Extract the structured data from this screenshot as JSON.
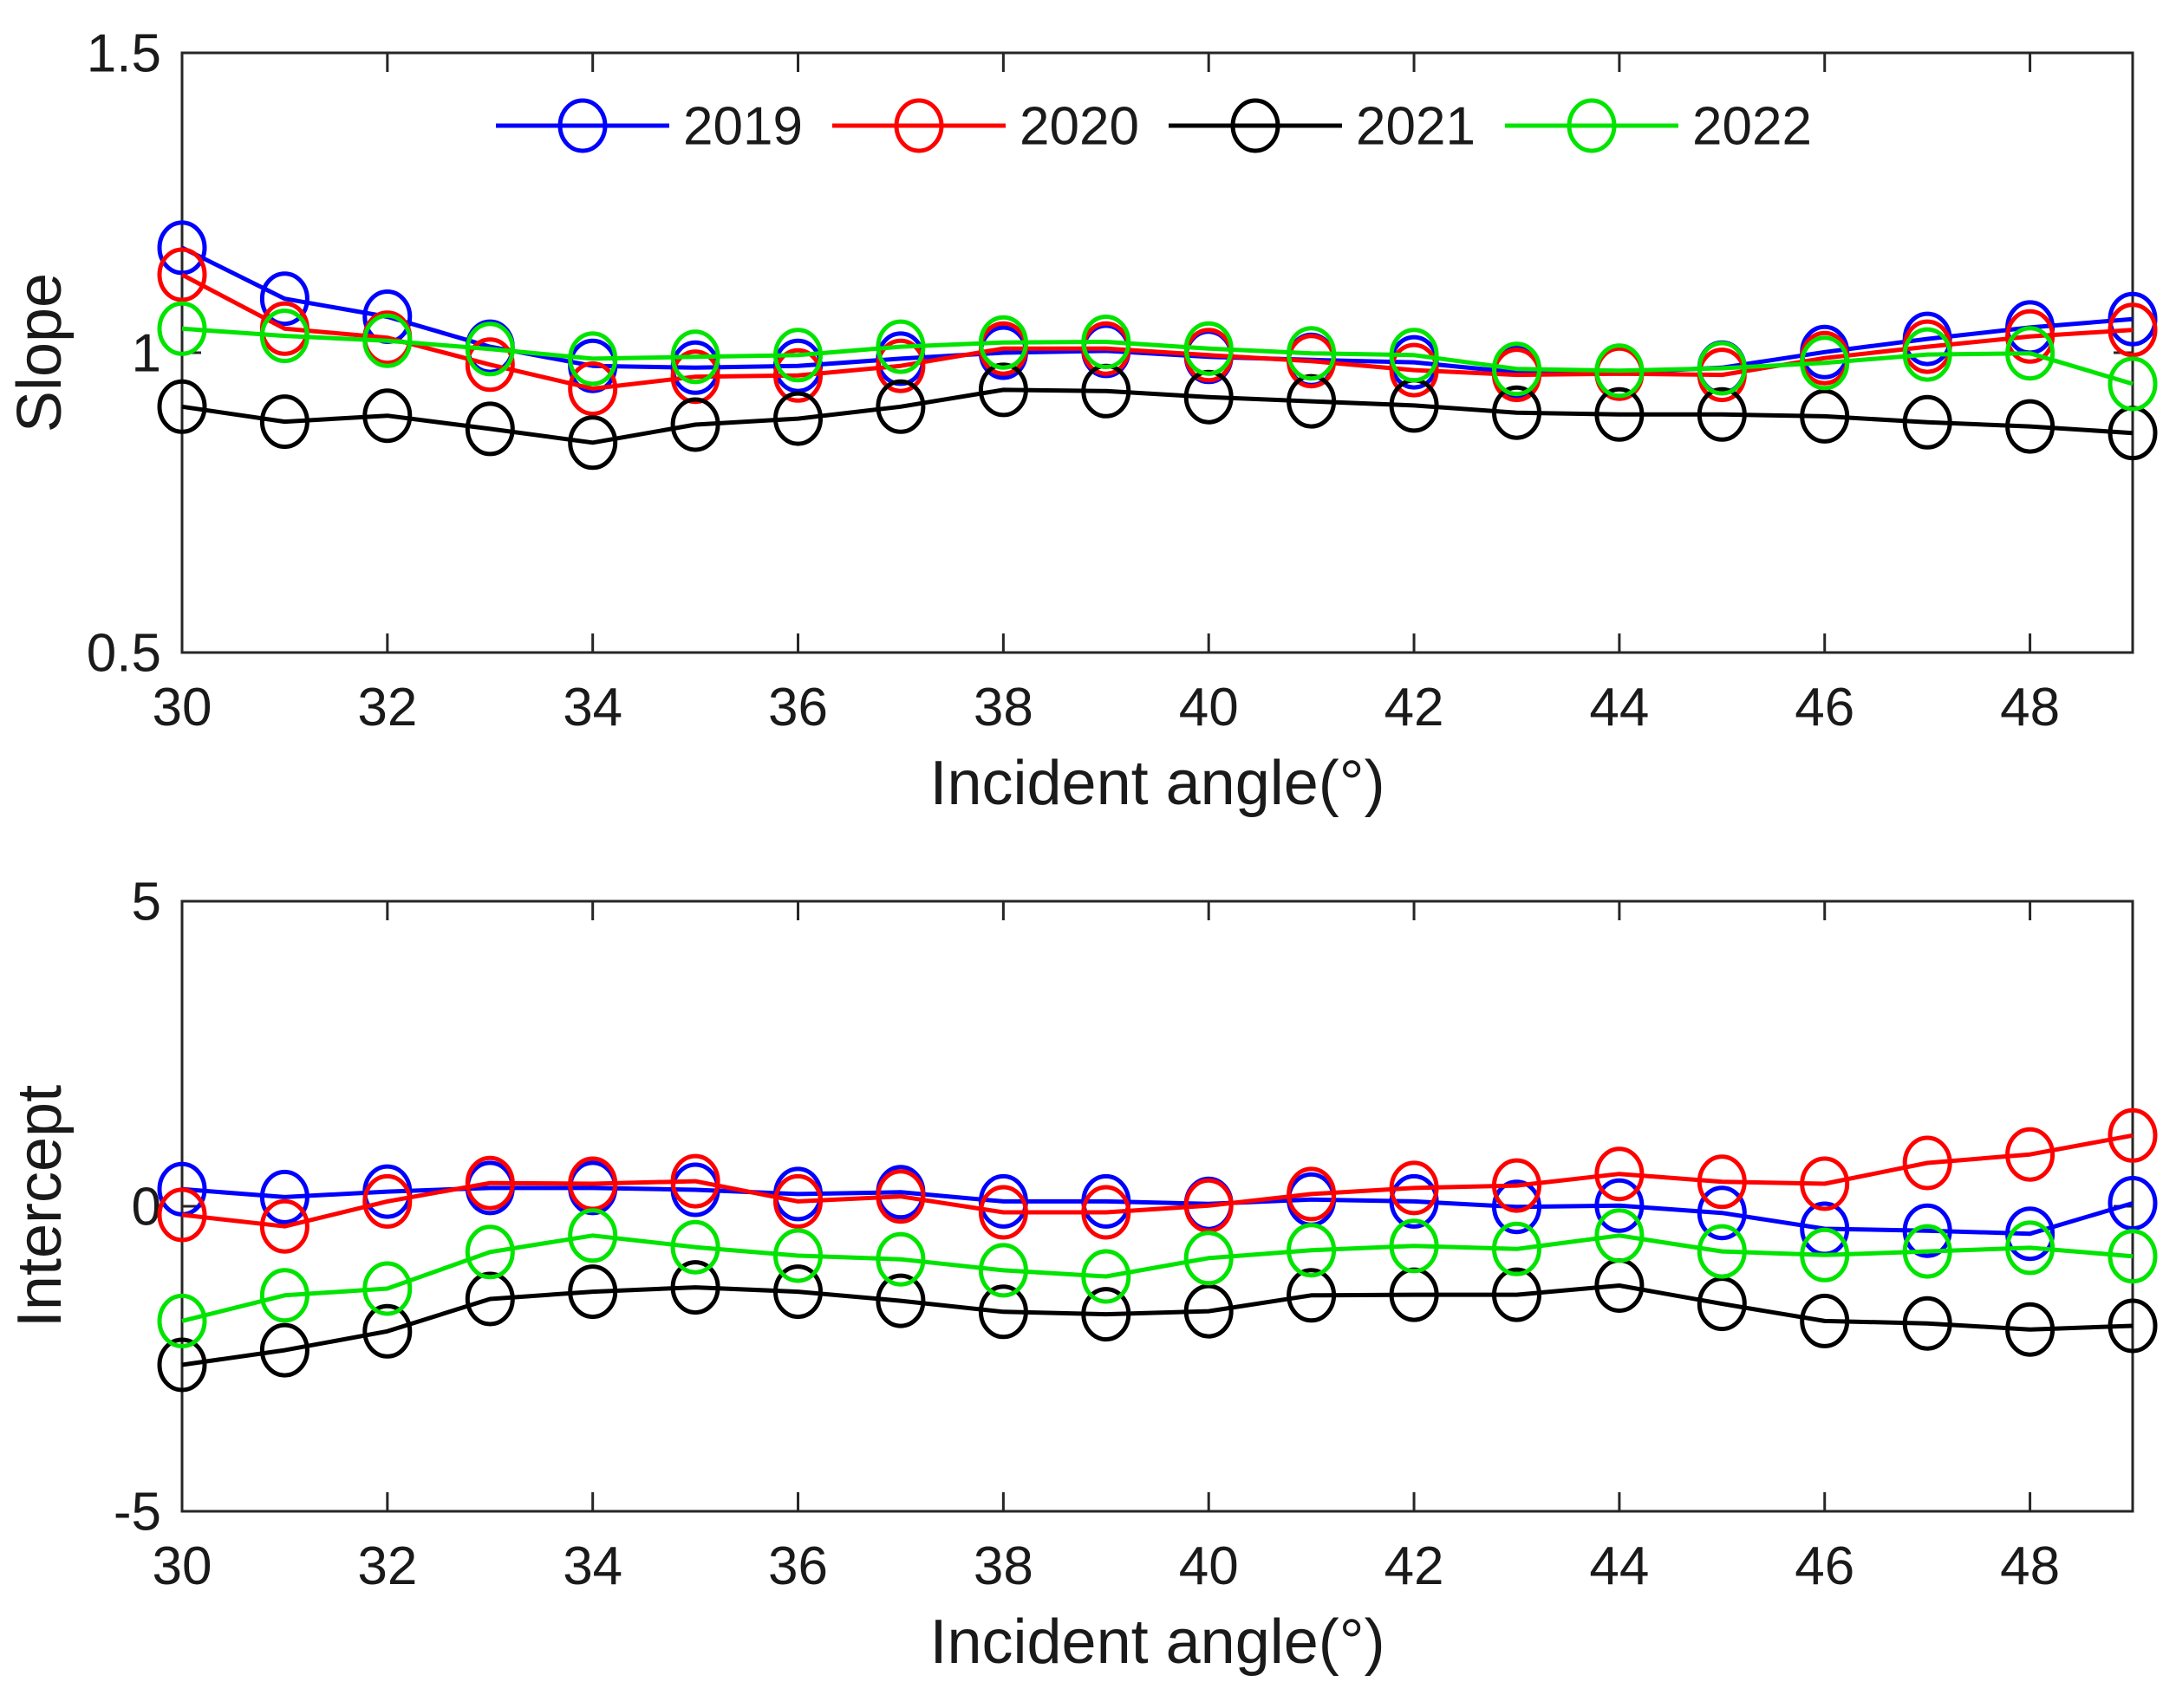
{
  "figure": {
    "background": "#ffffff",
    "axis_color": "#262626",
    "text_color": "#1a1a1a"
  },
  "legend": {
    "position": "top-inside",
    "entries": [
      {
        "label": "2019",
        "color": "#0000ff",
        "marker": "circle-icon"
      },
      {
        "label": "2020",
        "color": "#ff0000",
        "marker": "circle-icon"
      },
      {
        "label": "2021",
        "color": "#000000",
        "marker": "circle-icon"
      },
      {
        "label": "2022",
        "color": "#00e400",
        "marker": "circle-icon"
      }
    ]
  },
  "chart_data": [
    {
      "type": "line",
      "title": "",
      "xlabel": "Incident angle(°)",
      "ylabel": "Slope",
      "xlim": [
        30,
        49
      ],
      "ylim": [
        0.5,
        1.5
      ],
      "xticks": [
        30,
        32,
        34,
        36,
        38,
        40,
        42,
        44,
        46,
        48
      ],
      "xtick_labels": [
        "30",
        "32",
        "34",
        "36",
        "38",
        "40",
        "42",
        "44",
        "46",
        "48"
      ],
      "yticks": [
        0.5,
        1,
        1.5
      ],
      "ytick_labels": [
        "0.5",
        "1",
        "1.5"
      ],
      "grid": false,
      "legend": true,
      "x": [
        30,
        31,
        32,
        33,
        34,
        35,
        36,
        37,
        38,
        39,
        40,
        41,
        42,
        43,
        44,
        45,
        46,
        47,
        48,
        49
      ],
      "series": [
        {
          "name": "2019",
          "color": "#0000ff",
          "marker": "o",
          "values": [
            1.175,
            1.09,
            1.06,
            1.01,
            0.978,
            0.975,
            0.978,
            0.99,
            1.0,
            1.003,
            0.993,
            0.988,
            0.984,
            0.967,
            0.967,
            0.975,
            1.001,
            1.023,
            1.042,
            1.056
          ]
        },
        {
          "name": "2020",
          "color": "#ff0000",
          "marker": "o",
          "values": [
            1.13,
            1.04,
            1.025,
            0.98,
            0.94,
            0.96,
            0.962,
            0.978,
            1.007,
            1.007,
            0.996,
            0.986,
            0.971,
            0.963,
            0.965,
            0.963,
            0.991,
            1.01,
            1.027,
            1.038
          ]
        },
        {
          "name": "2021",
          "color": "#000000",
          "marker": "o",
          "values": [
            0.91,
            0.885,
            0.895,
            0.873,
            0.85,
            0.88,
            0.89,
            0.91,
            0.938,
            0.936,
            0.926,
            0.919,
            0.912,
            0.9,
            0.897,
            0.897,
            0.894,
            0.884,
            0.877,
            0.866
          ]
        },
        {
          "name": "2022",
          "color": "#00e400",
          "marker": "o",
          "values": [
            1.04,
            1.028,
            1.02,
            1.006,
            0.99,
            0.993,
            0.996,
            1.01,
            1.017,
            1.018,
            1.007,
            0.999,
            0.996,
            0.973,
            0.97,
            0.974,
            0.983,
            0.997,
            0.999,
            0.948
          ]
        }
      ]
    },
    {
      "type": "line",
      "title": "",
      "xlabel": "Incident angle(°)",
      "ylabel": "Intercept",
      "xlim": [
        30,
        49
      ],
      "ylim": [
        -5,
        5
      ],
      "xticks": [
        30,
        32,
        34,
        36,
        38,
        40,
        42,
        44,
        46,
        48
      ],
      "xtick_labels": [
        "30",
        "32",
        "34",
        "36",
        "38",
        "40",
        "42",
        "44",
        "46",
        "48"
      ],
      "yticks": [
        -5,
        0,
        5
      ],
      "ytick_labels": [
        "-5",
        "0",
        "5"
      ],
      "grid": false,
      "legend": false,
      "x": [
        30,
        31,
        32,
        33,
        34,
        35,
        36,
        37,
        38,
        39,
        40,
        41,
        42,
        43,
        44,
        45,
        46,
        47,
        48,
        49
      ],
      "series": [
        {
          "name": "2019",
          "color": "#0000ff",
          "marker": "o",
          "values": [
            0.28,
            0.15,
            0.24,
            0.3,
            0.3,
            0.27,
            0.2,
            0.23,
            0.08,
            0.08,
            0.04,
            0.11,
            0.08,
            -0.01,
            0.01,
            -0.11,
            -0.37,
            -0.4,
            -0.45,
            0.05
          ]
        },
        {
          "name": "2020",
          "color": "#ff0000",
          "marker": "o",
          "values": [
            -0.14,
            -0.33,
            0.08,
            0.38,
            0.37,
            0.41,
            0.08,
            0.16,
            -0.1,
            -0.1,
            0.01,
            0.2,
            0.3,
            0.34,
            0.53,
            0.4,
            0.37,
            0.71,
            0.85,
            1.16
          ]
        },
        {
          "name": "2021",
          "color": "#000000",
          "marker": "o",
          "values": [
            -2.6,
            -2.36,
            -2.05,
            -1.52,
            -1.4,
            -1.33,
            -1.4,
            -1.55,
            -1.73,
            -1.77,
            -1.72,
            -1.46,
            -1.45,
            -1.45,
            -1.3,
            -1.6,
            -1.88,
            -1.92,
            -2.02,
            -1.96
          ]
        },
        {
          "name": "2022",
          "color": "#00e400",
          "marker": "o",
          "values": [
            -1.88,
            -1.46,
            -1.35,
            -0.75,
            -0.48,
            -0.67,
            -0.81,
            -0.87,
            -1.05,
            -1.15,
            -0.85,
            -0.72,
            -0.65,
            -0.7,
            -0.48,
            -0.74,
            -0.8,
            -0.74,
            -0.68,
            -0.82
          ]
        }
      ]
    }
  ]
}
